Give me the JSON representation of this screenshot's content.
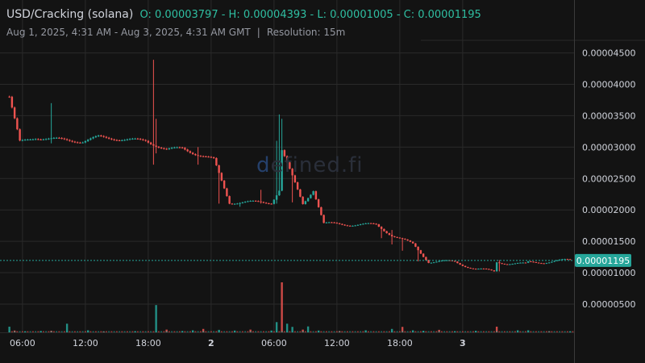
{
  "header": {
    "symbol": "USD/Cracking (solana)",
    "ohlc": "O: 0.00003797 - H: 0.00004393 - L: 0.00001005 - C: 0.00001195",
    "date_range": "Aug 1, 2025, 4:31 AM - Aug 3, 2025, 4:31 AM GMT",
    "separator": "|",
    "resolution": "Resolution: 15m"
  },
  "watermark": {
    "prefix": "d",
    "text": "efined.fi"
  },
  "colors": {
    "up": "#26a69a",
    "down": "#ef5350",
    "grid": "#2a2a2a",
    "bg": "#131313",
    "last": "#26a69a"
  },
  "chart_data": {
    "type": "candlestick",
    "x_ticks": [
      "06:00",
      "12:00",
      "18:00",
      "2",
      "06:00",
      "12:00",
      "18:00",
      "3"
    ],
    "y_ticks": [
      "0.00000500",
      "0.00001000",
      "0.00001500",
      "0.00002000",
      "0.00002500",
      "0.00003000",
      "0.00003500",
      "0.00004000",
      "0.00004500"
    ],
    "ylim": [
      5e-07,
      4.7e-05
    ],
    "last_price": 1.195e-05,
    "last_price_label": "0.00001195",
    "grid": true,
    "segments": [
      {
        "start": 0,
        "end": 4,
        "p0": 3.8e-05,
        "p1": 3.08e-05
      },
      {
        "start": 4,
        "end": 10,
        "p0": 3.08e-05,
        "p1": 3.15e-05
      },
      {
        "start": 10,
        "end": 28,
        "p0": 3.15e-05,
        "p1": 3.09e-05
      },
      {
        "start": 28,
        "end": 34,
        "p0": 3.09e-05,
        "p1": 3.16e-05
      },
      {
        "start": 34,
        "end": 44,
        "p0": 3.16e-05,
        "p1": 3.12e-05
      },
      {
        "start": 44,
        "end": 52,
        "p0": 3.12e-05,
        "p1": 3.1e-05
      },
      {
        "start": 52,
        "end": 60,
        "p0": 3.1e-05,
        "p1": 2.96e-05
      },
      {
        "start": 60,
        "end": 66,
        "p0": 2.96e-05,
        "p1": 2.98e-05
      },
      {
        "start": 66,
        "end": 72,
        "p0": 2.98e-05,
        "p1": 2.88e-05
      },
      {
        "start": 72,
        "end": 78,
        "p0": 2.88e-05,
        "p1": 2.8e-05
      },
      {
        "start": 78,
        "end": 84,
        "p0": 2.8e-05,
        "p1": 2.12e-05
      },
      {
        "start": 84,
        "end": 100,
        "p0": 2.12e-05,
        "p1": 2.12e-05
      },
      {
        "start": 100,
        "end": 104,
        "p0": 2.12e-05,
        "p1": 2.38e-05
      },
      {
        "start": 104,
        "end": 112,
        "p0": 2.95e-05,
        "p1": 2.1e-05
      },
      {
        "start": 112,
        "end": 116,
        "p0": 2.1e-05,
        "p1": 2.32e-05
      },
      {
        "start": 116,
        "end": 120,
        "p0": 2.32e-05,
        "p1": 1.78e-05
      },
      {
        "start": 120,
        "end": 140,
        "p0": 1.78e-05,
        "p1": 1.76e-05
      },
      {
        "start": 140,
        "end": 146,
        "p0": 1.76e-05,
        "p1": 1.6e-05
      },
      {
        "start": 146,
        "end": 154,
        "p0": 1.6e-05,
        "p1": 1.45e-05
      },
      {
        "start": 154,
        "end": 160,
        "p0": 1.45e-05,
        "p1": 1.18e-05
      },
      {
        "start": 160,
        "end": 170,
        "p0": 1.18e-05,
        "p1": 1.17e-05
      },
      {
        "start": 170,
        "end": 178,
        "p0": 1.17e-05,
        "p1": 1.06e-05
      },
      {
        "start": 178,
        "end": 186,
        "p0": 1.06e-05,
        "p1": 1.01e-05
      },
      {
        "start": 186,
        "end": 198,
        "p0": 1.17e-05,
        "p1": 1.13e-05
      },
      {
        "start": 198,
        "end": 215,
        "p0": 1.16e-05,
        "p1": 1.2e-05
      }
    ],
    "spikes": [
      {
        "i": 16,
        "high": 3.7e-05,
        "low": 3.06e-05
      },
      {
        "i": 55,
        "high": 4.39e-05,
        "low": 2.72e-05
      },
      {
        "i": 56,
        "high": 3.45e-05,
        "low": 2.9e-05
      },
      {
        "i": 72,
        "high": 3e-05,
        "low": 2.72e-05
      },
      {
        "i": 80,
        "high": 2.7e-05,
        "low": 2.1e-05
      },
      {
        "i": 88,
        "high": 2.12e-05,
        "low": 2.05e-05
      },
      {
        "i": 96,
        "high": 2.32e-05,
        "low": 2.1e-05
      },
      {
        "i": 102,
        "high": 3.1e-05,
        "low": 2.1e-05
      },
      {
        "i": 103,
        "high": 3.52e-05,
        "low": 2.75e-05
      },
      {
        "i": 104,
        "high": 3.45e-05,
        "low": 2.7e-05
      },
      {
        "i": 108,
        "high": 2.55e-05,
        "low": 2.12e-05
      },
      {
        "i": 142,
        "high": 1.72e-05,
        "low": 1.55e-05
      },
      {
        "i": 146,
        "high": 1.68e-05,
        "low": 1.45e-05
      },
      {
        "i": 150,
        "high": 1.55e-05,
        "low": 1.35e-05
      },
      {
        "i": 156,
        "high": 1.35e-05,
        "low": 1.18e-05
      },
      {
        "i": 187,
        "high": 1.2e-05,
        "low": 1.02e-05
      }
    ],
    "volume_max": 22000,
    "volumes": [
      [
        0,
        2500
      ],
      [
        2,
        800
      ],
      [
        6,
        400
      ],
      [
        12,
        600
      ],
      [
        16,
        700
      ],
      [
        22,
        3800
      ],
      [
        30,
        900
      ],
      [
        36,
        300
      ],
      [
        48,
        500
      ],
      [
        56,
        12000
      ],
      [
        60,
        1200
      ],
      [
        66,
        600
      ],
      [
        70,
        900
      ],
      [
        74,
        1500
      ],
      [
        80,
        1100
      ],
      [
        86,
        800
      ],
      [
        92,
        1200
      ],
      [
        100,
        800
      ],
      [
        102,
        4500
      ],
      [
        104,
        22000
      ],
      [
        106,
        3800
      ],
      [
        108,
        2400
      ],
      [
        112,
        1200
      ],
      [
        114,
        2600
      ],
      [
        118,
        800
      ],
      [
        126,
        600
      ],
      [
        136,
        900
      ],
      [
        146,
        1500
      ],
      [
        150,
        2400
      ],
      [
        154,
        900
      ],
      [
        158,
        700
      ],
      [
        164,
        1100
      ],
      [
        170,
        500
      ],
      [
        178,
        700
      ],
      [
        186,
        2500
      ],
      [
        194,
        900
      ],
      [
        198,
        900
      ],
      [
        206,
        500
      ],
      [
        214,
        400
      ]
    ]
  }
}
